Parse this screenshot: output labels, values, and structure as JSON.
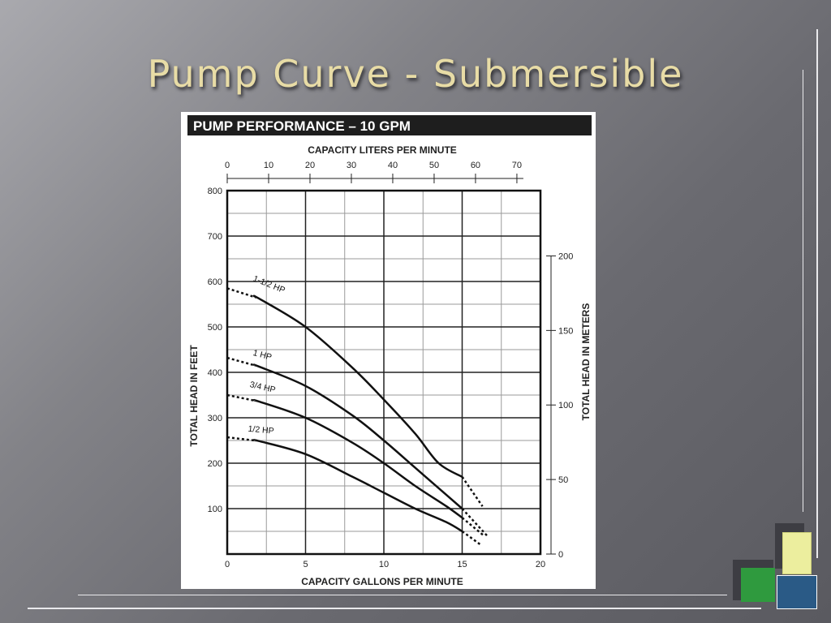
{
  "slide": {
    "title": "Pump Curve - Submersible"
  },
  "chart_data": {
    "type": "line",
    "title": "PUMP PERFORMANCE – 10 GPM",
    "xlabel": "CAPACITY GALLONS PER MINUTE",
    "ylabel": "TOTAL HEAD IN FEET",
    "x2label": "CAPACITY LITERS PER MINUTE",
    "y2label": "TOTAL HEAD IN METERS",
    "xlim": [
      0,
      20
    ],
    "ylim": [
      0,
      800
    ],
    "xticks": [
      0,
      5,
      10,
      15,
      20
    ],
    "yticks": [
      100,
      200,
      300,
      400,
      500,
      600,
      700,
      800
    ],
    "x2lim": [
      0,
      75.7
    ],
    "x2ticks": [
      0,
      10,
      20,
      30,
      40,
      50,
      60,
      70
    ],
    "y2lim": [
      0,
      243.8
    ],
    "y2ticks": [
      0,
      50,
      100,
      150,
      200
    ],
    "grid": true,
    "series": [
      {
        "name": "1-1/2 HP",
        "values": [
          [
            0,
            585
          ],
          [
            2,
            563
          ],
          [
            5,
            500
          ],
          [
            8,
            410
          ],
          [
            10,
            340
          ],
          [
            12,
            265
          ],
          [
            13.5,
            200
          ],
          [
            15,
            170
          ]
        ],
        "extension": [
          [
            15,
            170
          ],
          [
            16.3,
            105
          ]
        ]
      },
      {
        "name": "1 HP",
        "values": [
          [
            0,
            432
          ],
          [
            2,
            413
          ],
          [
            5,
            370
          ],
          [
            8,
            305
          ],
          [
            10,
            250
          ],
          [
            12,
            190
          ],
          [
            14,
            130
          ],
          [
            15,
            100
          ]
        ],
        "extension": [
          [
            15,
            100
          ],
          [
            16.6,
            40
          ]
        ]
      },
      {
        "name": "3/4 HP",
        "values": [
          [
            0,
            350
          ],
          [
            2,
            336
          ],
          [
            5,
            300
          ],
          [
            8,
            245
          ],
          [
            10,
            200
          ],
          [
            12,
            150
          ],
          [
            14,
            105
          ],
          [
            15,
            80
          ]
        ],
        "extension": [
          [
            15,
            80
          ],
          [
            16.4,
            40
          ]
        ]
      },
      {
        "name": "1/2 HP",
        "values": [
          [
            0,
            257
          ],
          [
            2,
            249
          ],
          [
            5,
            220
          ],
          [
            8,
            170
          ],
          [
            10,
            135
          ],
          [
            12,
            100
          ],
          [
            14,
            70
          ],
          [
            15,
            50
          ]
        ],
        "extension": [
          [
            15,
            50
          ],
          [
            16.2,
            20
          ]
        ]
      }
    ]
  }
}
